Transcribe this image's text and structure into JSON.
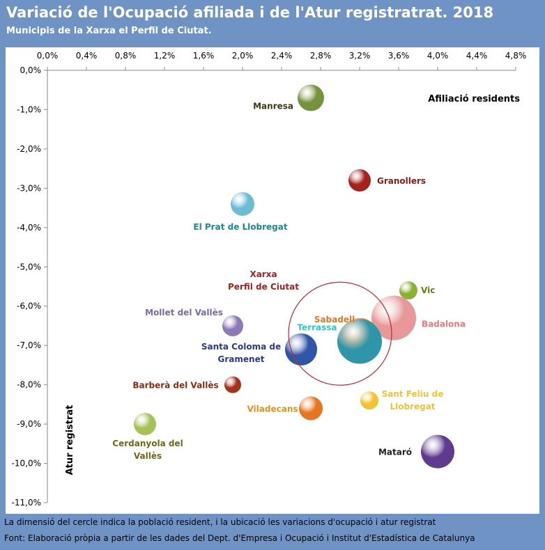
{
  "header": {
    "title": "Variació de l'Ocupació afiliada i de l'Atur registratrat. 2018",
    "subtitle": "Municipis de la Xarxa el Perfil de Ciutat."
  },
  "footer": {
    "note": "La dimensió del cercle indica la població resident, i la ubicació les variacions d'ocupació i atur registrat",
    "source": "Font: Elaboració pròpia a partir de les dades del Dept. d'Empresa i Ocupació  i Institut d'Estadística de Catalunya"
  },
  "colors": {
    "frame": "#6f93c5"
  },
  "chart_data": {
    "type": "scatter",
    "subtype": "bubble",
    "xlabel": "Afiliació residents",
    "ylabel": "Atur registrat",
    "xlim": [
      0,
      0.048
    ],
    "ylim": [
      -0.11,
      0
    ],
    "x_ticks": [
      "0,0%",
      "0,4%",
      "0,8%",
      "1,2%",
      "1,6%",
      "2,0%",
      "2,4%",
      "2,8%",
      "3,2%",
      "3,6%",
      "4,0%",
      "4,4%",
      "4,8%"
    ],
    "y_ticks": [
      "0,0%",
      "-1,0%",
      "-2,0%",
      "-3,0%",
      "-4,0%",
      "-5,0%",
      "-6,0%",
      "-7,0%",
      "-8,0%",
      "-9,0%",
      "-10,0%",
      "-11,0%"
    ],
    "x_axis_position": "top",
    "grid": false,
    "points": [
      {
        "name": "Manresa",
        "x": 0.027,
        "y": -0.007,
        "size": 19,
        "color": "#76923c",
        "label_color": "#3a3a1a"
      },
      {
        "name": "Granollers",
        "x": 0.032,
        "y": -0.028,
        "size": 16,
        "color": "#a5231f",
        "label_color": "#8b1a13"
      },
      {
        "name": "El Prat de Llobregat",
        "x": 0.02,
        "y": -0.034,
        "size": 17,
        "color": "#6cbcd6",
        "label_color": "#1a8a92"
      },
      {
        "name": "Vic",
        "x": 0.037,
        "y": -0.056,
        "size": 13,
        "color": "#8ab12f",
        "label_color": "#6a7a1a"
      },
      {
        "name": "Badalona",
        "x": 0.0355,
        "y": -0.063,
        "size": 32,
        "color": "#e58d8e",
        "label_color": "#e7797a"
      },
      {
        "name": "Sabadell",
        "x": 0.032,
        "y": -0.068,
        "size": 28,
        "color": "#e6771f",
        "label_color": "#e6771f"
      },
      {
        "name": "Terrassa",
        "x": 0.032,
        "y": -0.069,
        "size": 32,
        "color": "#2e96a8",
        "label_color": "#33c4d0"
      },
      {
        "name": "Mollet del Vallès",
        "x": 0.019,
        "y": -0.065,
        "size": 15,
        "color": "#8c79b8",
        "label_color": "#7a6aa8"
      },
      {
        "name": "Santa Coloma de\nGramenet",
        "x": 0.026,
        "y": -0.071,
        "size": 23,
        "color": "#2f56a8",
        "label_color": "#2a3a90"
      },
      {
        "name": "Barberà del Vallès",
        "x": 0.019,
        "y": -0.08,
        "size": 12,
        "color": "#a5321c",
        "label_color": "#8b2a13"
      },
      {
        "name": "Viladecans",
        "x": 0.027,
        "y": -0.086,
        "size": 17,
        "color": "#e6771f",
        "label_color": "#e6901a"
      },
      {
        "name": "Sant Feliu de\nLlobregat",
        "x": 0.033,
        "y": -0.084,
        "size": 13,
        "color": "#f0c435",
        "label_color": "#f0c435"
      },
      {
        "name": "Cerdanyola del\nVallès",
        "x": 0.01,
        "y": -0.09,
        "size": 16,
        "color": "#a8c25a",
        "label_color": "#6a6a1a"
      },
      {
        "name": "Mataró",
        "x": 0.04,
        "y": -0.097,
        "size": 24,
        "color": "#5f3a8e",
        "label_color": "#222222"
      }
    ],
    "reference": {
      "name": "Xarxa\nPerfil de Ciutat",
      "x": 0.03,
      "y": -0.067,
      "label_color": "#a5231f",
      "ring_color": "#c0282d"
    }
  }
}
